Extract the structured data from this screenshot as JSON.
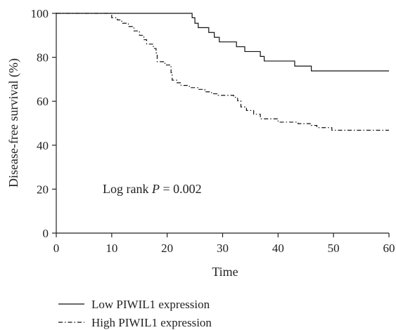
{
  "chart_data": {
    "type": "line",
    "title": "",
    "xlabel": "Time",
    "ylabel": "Disease-free survival (%)",
    "xlim": [
      0,
      60
    ],
    "ylim": [
      0,
      100
    ],
    "xticks": [
      0,
      10,
      20,
      30,
      40,
      50,
      60
    ],
    "yticks": [
      0,
      20,
      40,
      60,
      80,
      100
    ],
    "grid": false,
    "legend_position": "bottom-left",
    "annotation": {
      "prefix": "Log rank ",
      "italic": "P",
      "suffix": " = 0.002"
    },
    "series": [
      {
        "name": "Low PIWIL1 expression",
        "style": "solid",
        "color": "#111111",
        "points": [
          [
            0,
            100
          ],
          [
            24.5,
            100
          ],
          [
            24.5,
            98
          ],
          [
            25,
            98
          ],
          [
            25,
            95.5
          ],
          [
            25.6,
            95.5
          ],
          [
            25.6,
            93.5
          ],
          [
            27.5,
            93.5
          ],
          [
            27.5,
            91.3
          ],
          [
            28.5,
            91.3
          ],
          [
            28.5,
            89.1
          ],
          [
            29.4,
            89.1
          ],
          [
            29.4,
            87
          ],
          [
            32.5,
            87
          ],
          [
            32.5,
            84.8
          ],
          [
            34,
            84.8
          ],
          [
            34,
            82.6
          ],
          [
            36.8,
            82.6
          ],
          [
            36.8,
            80.4
          ],
          [
            37.5,
            80.4
          ],
          [
            37.5,
            78.3
          ],
          [
            43,
            78.3
          ],
          [
            43,
            76
          ],
          [
            46,
            76
          ],
          [
            46,
            73.8
          ],
          [
            60,
            73.8
          ]
        ]
      },
      {
        "name": "High PIWIL1 expression",
        "style": "dash-dot",
        "color": "#111111",
        "points": [
          [
            0,
            100
          ],
          [
            10,
            100
          ],
          [
            10,
            98
          ],
          [
            11,
            98
          ],
          [
            11,
            97
          ],
          [
            11.8,
            97
          ],
          [
            11.8,
            95.5
          ],
          [
            13,
            95.5
          ],
          [
            13,
            94
          ],
          [
            14,
            94
          ],
          [
            14,
            92
          ],
          [
            15,
            92
          ],
          [
            15,
            90
          ],
          [
            15.8,
            90
          ],
          [
            15.8,
            88
          ],
          [
            16.3,
            88
          ],
          [
            16.3,
            86
          ],
          [
            17.5,
            86
          ],
          [
            17.5,
            84
          ],
          [
            18,
            84
          ],
          [
            18,
            82
          ],
          [
            18.2,
            82
          ],
          [
            18.2,
            78
          ],
          [
            19.6,
            78
          ],
          [
            19.6,
            76.5
          ],
          [
            20.7,
            76.5
          ],
          [
            20.7,
            73
          ],
          [
            20.9,
            73
          ],
          [
            20.9,
            69.6
          ],
          [
            21.7,
            69.6
          ],
          [
            21.7,
            68.4
          ],
          [
            22.5,
            68.4
          ],
          [
            22.5,
            67.2
          ],
          [
            24,
            67.2
          ],
          [
            24,
            66.2
          ],
          [
            25.5,
            66.2
          ],
          [
            25.5,
            65.4
          ],
          [
            26.8,
            65.4
          ],
          [
            26.8,
            64.3
          ],
          [
            28,
            64.3
          ],
          [
            28,
            63.4
          ],
          [
            29,
            63.4
          ],
          [
            29,
            62.7
          ],
          [
            32,
            62.7
          ],
          [
            32,
            61.8
          ],
          [
            32.7,
            61.8
          ],
          [
            32.7,
            60.2
          ],
          [
            33.3,
            60.2
          ],
          [
            33.3,
            57.4
          ],
          [
            34.3,
            57.4
          ],
          [
            34.3,
            55.8
          ],
          [
            35.6,
            55.8
          ],
          [
            35.6,
            54.1
          ],
          [
            36.8,
            54.1
          ],
          [
            36.8,
            52
          ],
          [
            40,
            52
          ],
          [
            40,
            50.5
          ],
          [
            43.6,
            50.5
          ],
          [
            43.6,
            49.8
          ],
          [
            46,
            49.8
          ],
          [
            46,
            49
          ],
          [
            47,
            49
          ],
          [
            47,
            48
          ],
          [
            49.7,
            48
          ],
          [
            49.7,
            46.8
          ],
          [
            60,
            46.8
          ]
        ]
      }
    ]
  }
}
